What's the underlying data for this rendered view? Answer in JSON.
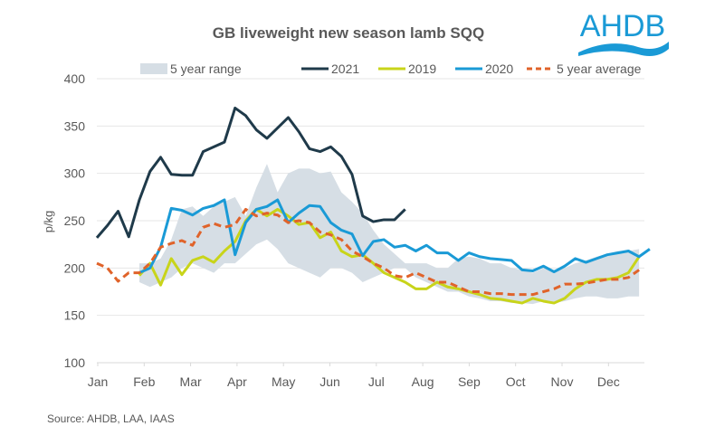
{
  "logo": {
    "text": "AHDB",
    "color": "#1a9ad6"
  },
  "source": "Source: AHDB, LAA, IAAS",
  "chart_data": {
    "type": "line",
    "title": "GB liveweight new season lamb SQQ",
    "xlabel": "",
    "ylabel": "p/kg",
    "ylim": [
      100,
      400
    ],
    "yticks": [
      100,
      150,
      200,
      250,
      300,
      350,
      400
    ],
    "grid": true,
    "legend_position": "top",
    "month_labels": [
      "Jan",
      "Feb",
      "Mar",
      "Apr",
      "May",
      "Jun",
      "Jul",
      "Aug",
      "Sep",
      "Oct",
      "Nov",
      "Dec"
    ],
    "x_unit": "week",
    "weeks": 52,
    "range": {
      "name": "5 year range",
      "color": "#d6dee5",
      "start_week": 4,
      "low": [
        null,
        null,
        null,
        null,
        185,
        180,
        185,
        190,
        200,
        205,
        200,
        195,
        205,
        205,
        215,
        225,
        230,
        220,
        205,
        200,
        195,
        190,
        200,
        200,
        195,
        185,
        190,
        195,
        200,
        200,
        190,
        185,
        180,
        175,
        175,
        170,
        168,
        165,
        165,
        163,
        163,
        162,
        165,
        163,
        165,
        168,
        170,
        170,
        168,
        168,
        170,
        170
      ],
      "high": [
        null,
        null,
        null,
        null,
        205,
        205,
        210,
        230,
        262,
        265,
        255,
        265,
        270,
        275,
        255,
        285,
        310,
        280,
        300,
        305,
        305,
        300,
        302,
        280,
        270,
        258,
        240,
        225,
        215,
        205,
        205,
        205,
        200,
        200,
        210,
        212,
        210,
        205,
        205,
        200,
        198,
        195,
        200,
        198,
        200,
        205,
        208,
        212,
        215,
        218,
        218,
        220
      ]
    },
    "series": [
      {
        "name": "2021",
        "color": "#1f3a4a",
        "dash": false,
        "values": [
          232,
          245,
          260,
          233,
          272,
          302,
          317,
          299,
          298,
          298,
          323,
          328,
          333,
          369,
          361,
          346,
          337,
          348,
          359,
          344,
          326,
          323,
          328,
          318,
          299,
          255,
          249,
          251,
          251,
          262,
          null,
          null,
          null,
          null,
          null,
          null,
          null,
          null,
          null,
          null,
          null,
          null,
          null,
          null,
          null,
          null,
          null,
          null,
          null,
          null,
          null,
          null
        ]
      },
      {
        "name": "2019",
        "color": "#c8d41a",
        "dash": false,
        "values": [
          null,
          null,
          null,
          null,
          192,
          205,
          182,
          210,
          193,
          208,
          212,
          206,
          218,
          228,
          250,
          262,
          255,
          262,
          255,
          246,
          248,
          232,
          238,
          218,
          212,
          214,
          205,
          195,
          190,
          185,
          178,
          178,
          185,
          180,
          178,
          175,
          172,
          168,
          167,
          165,
          163,
          168,
          165,
          163,
          168,
          178,
          185,
          188,
          188,
          190,
          195,
          212
        ]
      },
      {
        "name": "2020",
        "color": "#1a9ad6",
        "dash": false,
        "values": [
          null,
          null,
          null,
          null,
          195,
          200,
          222,
          263,
          261,
          256,
          263,
          266,
          272,
          214,
          248,
          262,
          265,
          272,
          248,
          258,
          266,
          265,
          248,
          240,
          236,
          213,
          228,
          230,
          222,
          224,
          218,
          224,
          216,
          216,
          208,
          216,
          212,
          210,
          209,
          208,
          198,
          197,
          202,
          196,
          202,
          210,
          206,
          210,
          214,
          216,
          218,
          212,
          220
        ]
      },
      {
        "name": "5 year average",
        "color": "#e0632a",
        "dash": true,
        "values": [
          205,
          200,
          186,
          195,
          195,
          205,
          222,
          226,
          229,
          224,
          243,
          247,
          243,
          246,
          262,
          255,
          258,
          256,
          248,
          250,
          248,
          238,
          235,
          230,
          218,
          212,
          205,
          200,
          192,
          190,
          195,
          190,
          185,
          185,
          180,
          175,
          175,
          173,
          173,
          172,
          172,
          172,
          175,
          178,
          183,
          183,
          184,
          186,
          188,
          188,
          190,
          198
        ]
      }
    ]
  }
}
